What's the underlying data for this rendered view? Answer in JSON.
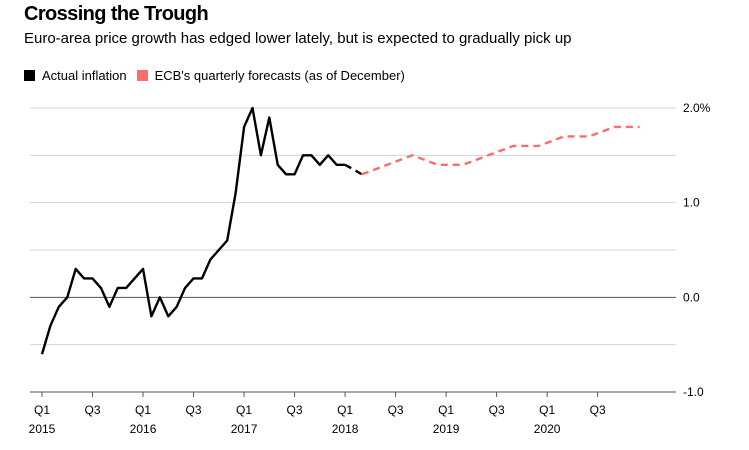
{
  "header": {
    "title": "Crossing the Trough",
    "subtitle": "Euro-area price growth has edged lower lately, but is expected to gradually pick up"
  },
  "legend": [
    {
      "label": "Actual inflation",
      "color": "#000000"
    },
    {
      "label": "ECB's quarterly forecasts (as of December)",
      "color": "#ff6b6b"
    }
  ],
  "chart_data": {
    "type": "line",
    "title": "Crossing the Trough",
    "subtitle": "Euro-area price growth has edged lower lately, but is expected to gradually pick up",
    "xlabel": "",
    "ylabel": "",
    "ylim": [
      -1.0,
      2.0
    ],
    "yticks": [
      {
        "value": 2.0,
        "label": "2.0%"
      },
      {
        "value": 1.5,
        "label": ""
      },
      {
        "value": 1.0,
        "label": "1.0"
      },
      {
        "value": 0.5,
        "label": ""
      },
      {
        "value": 0.0,
        "label": "0.0"
      },
      {
        "value": -0.5,
        "label": ""
      },
      {
        "value": -1.0,
        "label": "-1.0"
      }
    ],
    "xlim": [
      "2015-01",
      "2021-03"
    ],
    "xticks": [
      {
        "date": "2015-01",
        "label": "Q1",
        "year": "2015"
      },
      {
        "date": "2015-07",
        "label": "Q3",
        "year": ""
      },
      {
        "date": "2016-01",
        "label": "Q1",
        "year": "2016"
      },
      {
        "date": "2016-07",
        "label": "Q3",
        "year": ""
      },
      {
        "date": "2017-01",
        "label": "Q1",
        "year": "2017"
      },
      {
        "date": "2017-07",
        "label": "Q3",
        "year": ""
      },
      {
        "date": "2018-01",
        "label": "Q1",
        "year": "2018"
      },
      {
        "date": "2018-07",
        "label": "Q3",
        "year": ""
      },
      {
        "date": "2019-01",
        "label": "Q1",
        "year": "2019"
      },
      {
        "date": "2019-07",
        "label": "Q3",
        "year": ""
      },
      {
        "date": "2020-01",
        "label": "Q1",
        "year": "2020"
      },
      {
        "date": "2020-07",
        "label": "Q3",
        "year": ""
      }
    ],
    "grid": true,
    "legend_position": "top-left",
    "series": [
      {
        "name": "Actual inflation",
        "color": "#000000",
        "style": "solid",
        "x": [
          "2015-01",
          "2015-02",
          "2015-03",
          "2015-04",
          "2015-05",
          "2015-06",
          "2015-07",
          "2015-08",
          "2015-09",
          "2015-10",
          "2015-11",
          "2015-12",
          "2016-01",
          "2016-02",
          "2016-03",
          "2016-04",
          "2016-05",
          "2016-06",
          "2016-07",
          "2016-08",
          "2016-09",
          "2016-10",
          "2016-11",
          "2016-12",
          "2017-01",
          "2017-02",
          "2017-03",
          "2017-04",
          "2017-05",
          "2017-06",
          "2017-07",
          "2017-08",
          "2017-09",
          "2017-10",
          "2017-11",
          "2017-12",
          "2018-01"
        ],
        "y": [
          -0.6,
          -0.3,
          -0.1,
          0.0,
          0.3,
          0.2,
          0.2,
          0.1,
          -0.1,
          0.1,
          0.1,
          0.2,
          0.3,
          -0.2,
          0.0,
          -0.2,
          -0.1,
          0.1,
          0.2,
          0.2,
          0.4,
          0.5,
          0.6,
          1.1,
          1.8,
          2.0,
          1.5,
          1.9,
          1.4,
          1.3,
          1.3,
          1.5,
          1.5,
          1.4,
          1.5,
          1.4,
          1.4
        ]
      },
      {
        "name": "Actual inflation (latest)",
        "color": "#000000",
        "style": "dashed",
        "x": [
          "2018-01",
          "2018-02",
          "2018-03"
        ],
        "y": [
          1.4,
          1.35,
          1.3
        ]
      },
      {
        "name": "ECB's quarterly forecasts (as of December)",
        "color": "#ff6b6b",
        "style": "dashed",
        "x": [
          "2018-03",
          "2018-06",
          "2018-09",
          "2018-12",
          "2019-03",
          "2019-06",
          "2019-09",
          "2019-12",
          "2020-03",
          "2020-06",
          "2020-09",
          "2020-12"
        ],
        "y": [
          1.3,
          1.4,
          1.5,
          1.4,
          1.4,
          1.5,
          1.6,
          1.6,
          1.7,
          1.7,
          1.8,
          1.8
        ]
      }
    ]
  }
}
